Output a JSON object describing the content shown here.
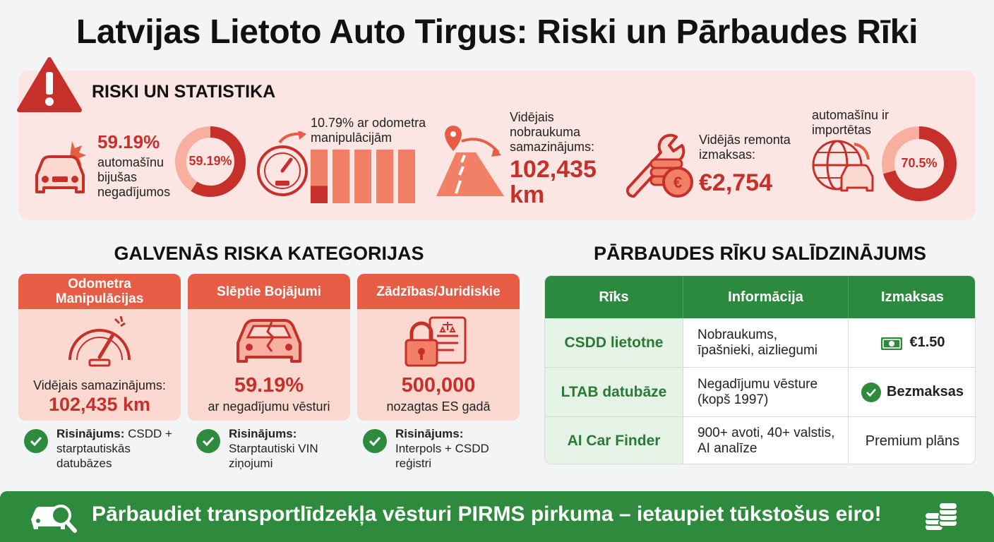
{
  "title": "Latvijas Lietoto Auto Tirgus: Riski un Pārbaudes Rīki",
  "stats": {
    "heading": "RISKI UN STATISTIKA",
    "accident": {
      "value": "59.19%",
      "text": [
        "automašīnu",
        "bijušas",
        "negadījumos"
      ],
      "donut_label": "59.19%",
      "fraction": 0.5919
    },
    "odometer": {
      "text": [
        "10.79% ar odometra",
        "manipulācijām"
      ],
      "fraction": 0.1079
    },
    "mileage": {
      "text": [
        "Vidējais",
        "nobraukuma",
        "samazinājums:"
      ],
      "value": [
        "102,435",
        "km"
      ]
    },
    "repair": {
      "text": [
        "Vidējās remonta",
        "izmaksas:"
      ],
      "value": "€2,754"
    },
    "import": {
      "text": [
        "automašīnu ir",
        "importētas"
      ],
      "donut_label": "70.5%",
      "fraction": 0.705
    }
  },
  "categories": {
    "heading": "GALVENĀS RISKA KATEGORIJAS",
    "cards": [
      {
        "title": [
          "Odometra",
          "Manipulācijas"
        ],
        "line": "Vidējais samazinājums:",
        "big": "102,435 km",
        "icon": "speedometer-icon",
        "solution_label": "Risinājums:",
        "solution": [
          "CSDD +",
          "starptautiskās",
          "datubāzes"
        ]
      },
      {
        "title": [
          "Slēptie Bojājumi"
        ],
        "big": "59.19%",
        "line": "ar negadījumu vēsturi",
        "icon": "damaged-car-icon",
        "solution_label": "Risinājums:",
        "solution": [
          "Starptautiski VIN",
          "ziņojumi"
        ]
      },
      {
        "title": [
          "Zādzības/Juridiskie"
        ],
        "big": "500,000",
        "line": "nozagtas ES gadā",
        "icon": "lock-document-icon",
        "solution_label": "Risinājums:",
        "solution": [
          "Interpols + CSDD",
          "reģistri"
        ]
      }
    ]
  },
  "comparison": {
    "heading": "PĀRBAUDES RĪKU SALĪDZINĀJUMS",
    "headers": [
      "Rīks",
      "Informācija",
      "Izmaksas"
    ],
    "rows": [
      {
        "tool": "CSDD lietotne",
        "info": [
          "Nobraukums,",
          "īpašnieki, aizliegumi"
        ],
        "cost": "€1.50",
        "cost_icon": "money-icon"
      },
      {
        "tool": "LTAB datubāze",
        "info": [
          "Negadījumu vēsture",
          "(kopš 1997)"
        ],
        "cost": "Bezmaksas",
        "cost_icon": "check-icon"
      },
      {
        "tool": "AI Car Finder",
        "info": [
          "900+ avoti, 40+ valstis,",
          "AI analīze"
        ],
        "cost": "Premium plāns",
        "cost_icon": ""
      }
    ]
  },
  "footer": {
    "text": "Pārbaudiet transportlīdzekļa vēsturi PIRMS pirkuma – ietaupiet tūkstošus eiro!"
  },
  "colors": {
    "red": "#c7302a",
    "coral": "#e75c45",
    "green": "#2e8b3e",
    "pink": "#fbe6e3"
  }
}
